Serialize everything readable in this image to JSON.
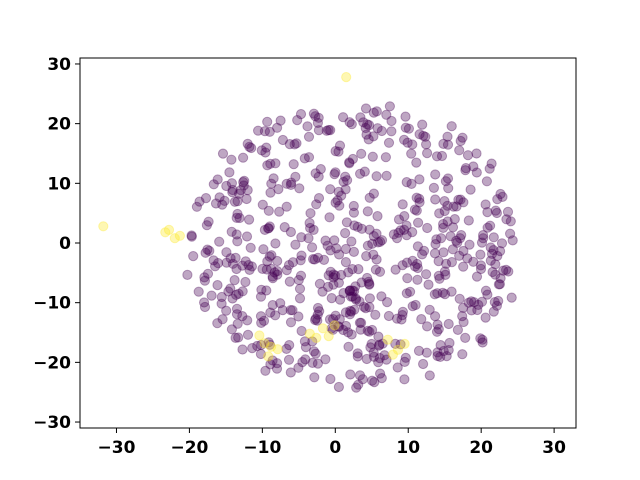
{
  "chart_data": {
    "type": "scatter",
    "title": "",
    "xlabel": "",
    "ylabel": "",
    "xlim": [
      -35,
      33
    ],
    "ylim": [
      -31,
      31
    ],
    "xticks": [
      -30,
      -20,
      -10,
      0,
      10,
      20,
      30
    ],
    "yticks": [
      -30,
      -20,
      -10,
      0,
      10,
      20,
      30
    ],
    "xtick_labels": [
      "−30",
      "−20",
      "−10",
      "0",
      "10",
      "20",
      "30"
    ],
    "ytick_labels": [
      "−30",
      "−20",
      "−10",
      "0",
      "10",
      "20",
      "30"
    ],
    "grid": false,
    "legend": "none",
    "marker_alpha": 0.35,
    "colors": {
      "class_0": "#440154",
      "class_1": "#fde725"
    },
    "series": [
      {
        "color_key": "class_1",
        "points": [
          [
            -31.8,
            2.8
          ],
          [
            -23.3,
            1.8
          ],
          [
            -22.8,
            2.2
          ],
          [
            -22.0,
            0.8
          ],
          [
            -21.3,
            1.2
          ],
          [
            -10.4,
            -15.5
          ],
          [
            -9.7,
            -16.8
          ],
          [
            -9.2,
            -19.0
          ],
          [
            -8.8,
            -17.4
          ],
          [
            -7.9,
            -17.8
          ],
          [
            -3.5,
            -15.2
          ],
          [
            -2.6,
            -15.9
          ],
          [
            -1.7,
            -14.3
          ],
          [
            -0.9,
            -15.6
          ],
          [
            -0.1,
            -13.8
          ],
          [
            1.5,
            27.8
          ],
          [
            7.2,
            -16.2
          ],
          [
            7.9,
            -18.7
          ],
          [
            8.6,
            -17.9
          ],
          [
            9.5,
            -16.9
          ]
        ]
      },
      {
        "color_key": "class_0",
        "count": 620,
        "seed": 12345,
        "spread": [
          22.5,
          24.0
        ],
        "center": [
          2.5,
          -0.5
        ]
      }
    ]
  }
}
